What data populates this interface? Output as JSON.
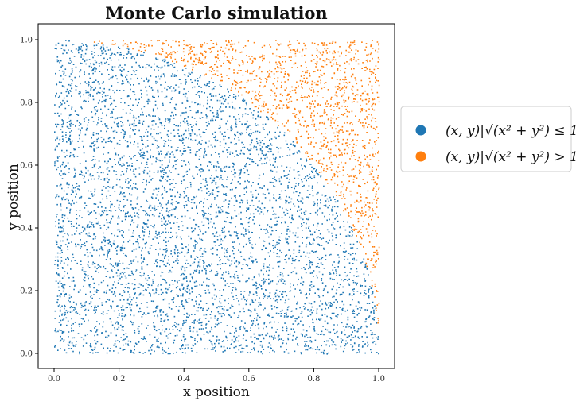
{
  "chart_data": {
    "type": "scatter",
    "title": "Monte Carlo simulation",
    "xlabel": "x position",
    "ylabel": "y position",
    "xlim": [
      0.0,
      1.0
    ],
    "ylim": [
      0.0,
      1.0
    ],
    "xticks": [
      "0.0",
      "0.2",
      "0.4",
      "0.6",
      "0.8",
      "1.0"
    ],
    "yticks": [
      "0.0",
      "0.2",
      "0.4",
      "0.6",
      "0.8",
      "1.0"
    ],
    "grid": false,
    "legend_position": "outside-right",
    "series": [
      {
        "name": "(x, y)|√(x² + y²) ≤ 1",
        "color": "#1f77b4",
        "region": "x^2 + y^2 <= 1"
      },
      {
        "name": "(x, y)|√(x² + y²) > 1",
        "color": "#ff7f0e",
        "region": "x^2 + y^2 > 1"
      }
    ]
  }
}
